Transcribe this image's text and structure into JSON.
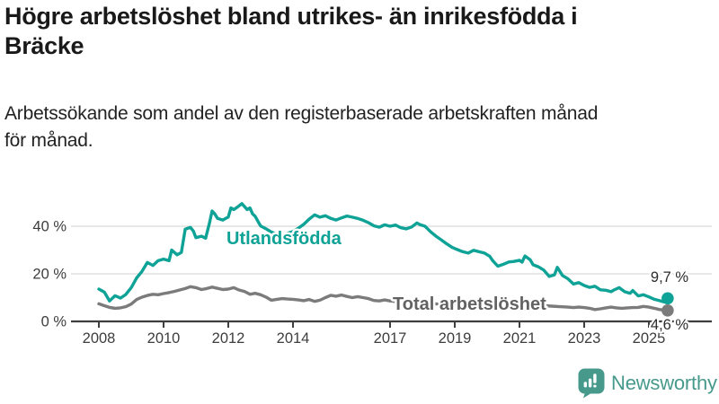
{
  "header": {
    "title_lines": [
      "Högre arbetslöshet bland utrikes- än inrikesfödda i",
      "Bräcke"
    ],
    "subtitle_lines": [
      "Arbetssökande som andel av den registerbaserade arbetskraften månad",
      "för månad."
    ]
  },
  "colors": {
    "teal_series": "#0fa296",
    "gray_series": "#7b7b7b",
    "gray_label": "#626262",
    "axis": "#3f3f3f",
    "tick_text": "#3d3d3d",
    "gridline": "#d9d9d9",
    "end_label_text": "#2b2b2b",
    "logo_teal": "#47998c",
    "background": "#ffffff"
  },
  "chart_data": {
    "type": "line",
    "title": "Högre arbetslöshet bland utrikes- än inrikesfödda i Bräcke",
    "subtitle": "Arbetssökande som andel av den registerbaserade arbetskraften månad för månad.",
    "xlabel": "",
    "ylabel": "",
    "x_axis": {
      "range": [
        2007.14,
        2026.9
      ],
      "tick_years": [
        2008,
        2010,
        2012,
        2014,
        2017,
        2019,
        2021,
        2023,
        2025
      ],
      "tick_labels": [
        "2008",
        "2010",
        "2012",
        "2014",
        "2017",
        "2019",
        "2021",
        "2023",
        "2025"
      ]
    },
    "y_axis": {
      "range": [
        0,
        52
      ],
      "ticks": [
        {
          "value": 0,
          "label": "0 %"
        },
        {
          "value": 20,
          "label": "20 %"
        },
        {
          "value": 40,
          "label": "40 %"
        }
      ],
      "gridlines": [
        20,
        40
      ],
      "grid_on": true
    },
    "legend_position": "inline-labels",
    "series": [
      {
        "name": "Utlandsfödda",
        "color_key": "teal_series",
        "end_label": "9,7 %",
        "end_value": 9.7,
        "points": [
          [
            2008.0,
            13.6
          ],
          [
            2008.17,
            12.3
          ],
          [
            2008.33,
            8.6
          ],
          [
            2008.5,
            10.8
          ],
          [
            2008.67,
            9.8
          ],
          [
            2008.83,
            11.3
          ],
          [
            2009.0,
            14.2
          ],
          [
            2009.17,
            18.3
          ],
          [
            2009.33,
            21.0
          ],
          [
            2009.5,
            24.8
          ],
          [
            2009.67,
            23.5
          ],
          [
            2009.83,
            25.5
          ],
          [
            2010.0,
            26.2
          ],
          [
            2010.17,
            25.5
          ],
          [
            2010.25,
            30.0
          ],
          [
            2010.42,
            28.0
          ],
          [
            2010.55,
            29.0
          ],
          [
            2010.67,
            38.8
          ],
          [
            2010.83,
            39.5
          ],
          [
            2010.92,
            38.0
          ],
          [
            2011.0,
            35.2
          ],
          [
            2011.17,
            35.8
          ],
          [
            2011.3,
            35.0
          ],
          [
            2011.42,
            41.4
          ],
          [
            2011.5,
            46.4
          ],
          [
            2011.58,
            45.2
          ],
          [
            2011.67,
            43.3
          ],
          [
            2011.83,
            42.6
          ],
          [
            2011.92,
            43.3
          ],
          [
            2012.0,
            43.9
          ],
          [
            2012.08,
            47.7
          ],
          [
            2012.17,
            47.0
          ],
          [
            2012.25,
            47.7
          ],
          [
            2012.42,
            49.5
          ],
          [
            2012.5,
            48.3
          ],
          [
            2012.58,
            47.0
          ],
          [
            2012.67,
            47.7
          ],
          [
            2012.75,
            45.2
          ],
          [
            2012.83,
            44.2
          ],
          [
            2012.92,
            42.0
          ],
          [
            2013.0,
            40.1
          ],
          [
            2013.17,
            38.9
          ],
          [
            2013.33,
            37.6
          ],
          [
            2013.5,
            36.6
          ],
          [
            2013.67,
            36.2
          ],
          [
            2013.83,
            37.0
          ],
          [
            2014.0,
            37.8
          ],
          [
            2014.17,
            39.2
          ],
          [
            2014.33,
            40.8
          ],
          [
            2014.5,
            43.0
          ],
          [
            2014.67,
            44.8
          ],
          [
            2014.83,
            43.8
          ],
          [
            2015.0,
            44.4
          ],
          [
            2015.17,
            43.3
          ],
          [
            2015.33,
            42.6
          ],
          [
            2015.5,
            43.5
          ],
          [
            2015.67,
            44.3
          ],
          [
            2015.83,
            43.8
          ],
          [
            2016.0,
            43.3
          ],
          [
            2016.17,
            42.5
          ],
          [
            2016.33,
            41.5
          ],
          [
            2016.5,
            40.2
          ],
          [
            2016.67,
            39.6
          ],
          [
            2016.83,
            40.6
          ],
          [
            2017.0,
            40.0
          ],
          [
            2017.17,
            40.5
          ],
          [
            2017.33,
            39.4
          ],
          [
            2017.5,
            38.9
          ],
          [
            2017.67,
            39.7
          ],
          [
            2017.83,
            41.4
          ],
          [
            2017.92,
            40.7
          ],
          [
            2018.08,
            40.0
          ],
          [
            2018.25,
            37.7
          ],
          [
            2018.42,
            35.8
          ],
          [
            2018.58,
            34.3
          ],
          [
            2018.75,
            32.6
          ],
          [
            2018.92,
            31.1
          ],
          [
            2019.08,
            30.2
          ],
          [
            2019.25,
            29.3
          ],
          [
            2019.42,
            28.7
          ],
          [
            2019.58,
            29.9
          ],
          [
            2019.75,
            29.3
          ],
          [
            2019.92,
            28.7
          ],
          [
            2020.08,
            27.4
          ],
          [
            2020.17,
            25.6
          ],
          [
            2020.33,
            23.2
          ],
          [
            2020.5,
            24.0
          ],
          [
            2020.67,
            25.0
          ],
          [
            2020.83,
            25.2
          ],
          [
            2021.0,
            25.7
          ],
          [
            2021.08,
            24.9
          ],
          [
            2021.17,
            27.5
          ],
          [
            2021.33,
            25.9
          ],
          [
            2021.42,
            23.8
          ],
          [
            2021.58,
            23.0
          ],
          [
            2021.75,
            21.6
          ],
          [
            2021.92,
            18.9
          ],
          [
            2022.08,
            19.6
          ],
          [
            2022.17,
            22.7
          ],
          [
            2022.33,
            19.3
          ],
          [
            2022.5,
            17.9
          ],
          [
            2022.67,
            15.7
          ],
          [
            2022.83,
            16.3
          ],
          [
            2023.0,
            15.1
          ],
          [
            2023.17,
            14.3
          ],
          [
            2023.33,
            14.8
          ],
          [
            2023.5,
            13.3
          ],
          [
            2023.67,
            13.1
          ],
          [
            2023.83,
            12.5
          ],
          [
            2023.92,
            13.2
          ],
          [
            2024.08,
            14.2
          ],
          [
            2024.25,
            12.5
          ],
          [
            2024.42,
            11.8
          ],
          [
            2024.5,
            13.0
          ],
          [
            2024.67,
            10.7
          ],
          [
            2024.83,
            11.2
          ],
          [
            2025.0,
            10.3
          ],
          [
            2025.17,
            9.3
          ],
          [
            2025.33,
            8.7
          ],
          [
            2025.46,
            8.2
          ],
          [
            2025.58,
            9.7
          ]
        ]
      },
      {
        "name": "Total arbetslöshet",
        "color_key": "gray_series",
        "end_label": "4,6 %",
        "end_value": 4.6,
        "points": [
          [
            2008.0,
            7.4
          ],
          [
            2008.17,
            6.6
          ],
          [
            2008.33,
            5.9
          ],
          [
            2008.5,
            5.5
          ],
          [
            2008.67,
            5.7
          ],
          [
            2008.83,
            6.2
          ],
          [
            2009.0,
            7.3
          ],
          [
            2009.17,
            9.2
          ],
          [
            2009.33,
            10.2
          ],
          [
            2009.5,
            10.9
          ],
          [
            2009.67,
            11.4
          ],
          [
            2009.83,
            11.2
          ],
          [
            2010.0,
            11.7
          ],
          [
            2010.17,
            12.1
          ],
          [
            2010.33,
            12.6
          ],
          [
            2010.5,
            13.2
          ],
          [
            2010.67,
            13.8
          ],
          [
            2010.83,
            14.6
          ],
          [
            2011.0,
            14.2
          ],
          [
            2011.17,
            13.4
          ],
          [
            2011.33,
            13.8
          ],
          [
            2011.5,
            14.4
          ],
          [
            2011.67,
            13.9
          ],
          [
            2011.83,
            13.4
          ],
          [
            2012.0,
            13.6
          ],
          [
            2012.17,
            14.2
          ],
          [
            2012.33,
            13.2
          ],
          [
            2012.5,
            12.6
          ],
          [
            2012.67,
            11.4
          ],
          [
            2012.83,
            11.8
          ],
          [
            2013.0,
            11.2
          ],
          [
            2013.17,
            10.2
          ],
          [
            2013.33,
            8.9
          ],
          [
            2013.5,
            9.3
          ],
          [
            2013.67,
            9.6
          ],
          [
            2013.83,
            9.4
          ],
          [
            2014.0,
            9.3
          ],
          [
            2014.17,
            9.0
          ],
          [
            2014.33,
            8.7
          ],
          [
            2014.5,
            9.2
          ],
          [
            2014.67,
            8.4
          ],
          [
            2014.83,
            8.9
          ],
          [
            2015.0,
            10.0
          ],
          [
            2015.17,
            11.0
          ],
          [
            2015.33,
            10.6
          ],
          [
            2015.5,
            11.1
          ],
          [
            2015.67,
            10.5
          ],
          [
            2015.83,
            10.0
          ],
          [
            2016.0,
            10.4
          ],
          [
            2016.17,
            10.0
          ],
          [
            2016.33,
            9.6
          ],
          [
            2016.5,
            8.8
          ],
          [
            2016.67,
            8.6
          ],
          [
            2016.83,
            9.0
          ],
          [
            2017.0,
            8.6
          ],
          [
            2017.25,
            8.3
          ],
          [
            2017.5,
            8.0
          ],
          [
            2017.75,
            7.8
          ],
          [
            2018.0,
            7.7
          ],
          [
            2018.25,
            7.5
          ],
          [
            2018.5,
            7.3
          ],
          [
            2018.75,
            7.2
          ],
          [
            2019.0,
            7.1
          ],
          [
            2019.25,
            7.0
          ],
          [
            2019.5,
            6.9
          ],
          [
            2019.75,
            6.9
          ],
          [
            2020.0,
            7.0
          ],
          [
            2020.25,
            7.4
          ],
          [
            2020.5,
            7.6
          ],
          [
            2020.75,
            7.5
          ],
          [
            2021.0,
            7.3
          ],
          [
            2021.25,
            7.1
          ],
          [
            2021.5,
            6.9
          ],
          [
            2021.75,
            6.6
          ],
          [
            2022.0,
            6.4
          ],
          [
            2022.25,
            6.2
          ],
          [
            2022.5,
            6.0
          ],
          [
            2022.67,
            5.8
          ],
          [
            2022.83,
            6.0
          ],
          [
            2023.0,
            5.8
          ],
          [
            2023.17,
            5.5
          ],
          [
            2023.33,
            5.0
          ],
          [
            2023.5,
            5.3
          ],
          [
            2023.67,
            5.7
          ],
          [
            2023.83,
            6.0
          ],
          [
            2024.0,
            5.7
          ],
          [
            2024.17,
            5.5
          ],
          [
            2024.33,
            5.7
          ],
          [
            2024.5,
            5.8
          ],
          [
            2024.67,
            5.9
          ],
          [
            2024.83,
            6.3
          ],
          [
            2025.0,
            6.0
          ],
          [
            2025.17,
            5.5
          ],
          [
            2025.33,
            5.0
          ],
          [
            2025.46,
            4.8
          ],
          [
            2025.58,
            4.6
          ]
        ]
      }
    ]
  },
  "footer": {
    "brand": "Newsworthy",
    "logo_icon": "newsworthy-speech-bubble-bar-chart-icon"
  }
}
